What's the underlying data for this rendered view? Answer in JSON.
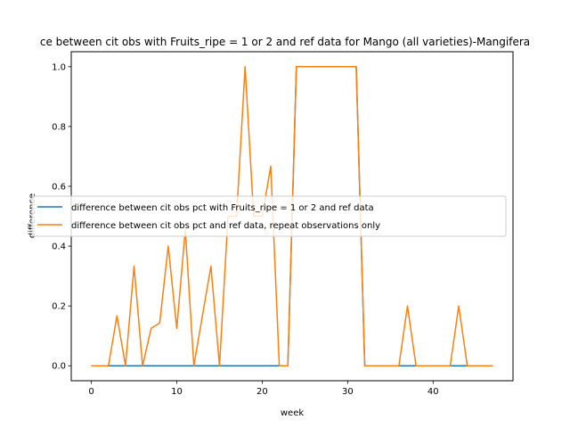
{
  "chart_data": {
    "type": "line",
    "title": "ce between cit obs with Fruits_ripe = 1 or 2 and ref data for Mango (all varieties)-Mangifera",
    "xlabel": "week",
    "ylabel": "difference",
    "xlim": [
      -2.35,
      49.35
    ],
    "ylim": [
      -0.05,
      1.05
    ],
    "xticks": [
      0,
      10,
      20,
      30,
      40
    ],
    "yticks": [
      0.0,
      0.2,
      0.4,
      0.6,
      0.8,
      1.0
    ],
    "grid": false,
    "legend_placement": "center",
    "x": [
      0,
      1,
      2,
      3,
      4,
      5,
      6,
      7,
      8,
      9,
      10,
      11,
      12,
      13,
      14,
      15,
      16,
      17,
      18,
      19,
      20,
      21,
      22,
      23,
      24,
      25,
      26,
      27,
      28,
      29,
      30,
      31,
      32,
      33,
      34,
      35,
      36,
      37,
      38,
      39,
      40,
      41,
      42,
      43,
      44,
      45,
      46,
      47
    ],
    "series": [
      {
        "name": "difference between cit obs pct with Fruits_ripe = 1 or 2 and ref data",
        "color": "#1f77b4",
        "values": [
          0,
          0,
          0,
          0,
          0,
          0,
          0,
          0,
          0,
          0,
          0,
          0,
          0,
          0,
          0,
          0,
          0,
          0,
          0,
          0,
          0,
          0,
          0,
          0,
          1,
          1,
          1,
          1,
          1,
          1,
          1,
          1,
          0,
          0,
          0,
          0,
          0,
          0,
          0,
          0,
          0,
          0,
          0,
          0,
          0,
          0,
          0,
          0
        ]
      },
      {
        "name": "difference between cit obs pct and ref data, repeat observations only",
        "color": "#ff7f0e",
        "values": [
          0,
          0,
          0,
          0.167,
          0,
          0.333,
          0,
          0.125,
          0.143,
          0.4,
          0.125,
          0.455,
          0,
          0.167,
          0.333,
          0,
          0.5,
          0.5,
          1.0,
          0.5,
          0.5,
          0.667,
          0,
          0,
          1,
          1,
          1,
          1,
          1,
          1,
          1,
          1,
          0,
          0,
          0,
          0,
          0,
          0.2,
          0,
          0,
          0,
          0,
          0,
          0.2,
          0,
          0,
          0,
          0
        ]
      }
    ]
  }
}
